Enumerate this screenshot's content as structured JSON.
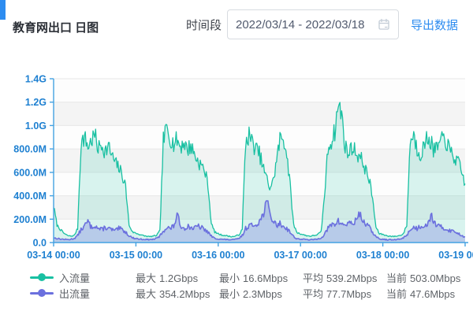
{
  "header": {
    "title": "教育网出口 日图",
    "time_label": "时间段",
    "date_range": "2022/03/14 - 2022/03/18",
    "export_label": "导出数据",
    "accent_color": "#2d8cf0"
  },
  "chart_data": {
    "type": "area",
    "title": "教育网出口 日图",
    "x_ticks": [
      "03-14 00:00",
      "03-15 00:00",
      "03-16 00:00",
      "03-17 00:00",
      "03-18 00:00",
      "03-19 00:00"
    ],
    "y_ticks": [
      "1.4G",
      "1.2G",
      "1.0G",
      "800.0M",
      "600.0M",
      "400.0M",
      "200.0M",
      "0.0"
    ],
    "ylim_mbps": [
      0,
      1400
    ],
    "unit": "Mbps",
    "grid_on": true,
    "legend_position": "bottom",
    "axis_color": "#44a2e2",
    "label_color": "#1e80d1",
    "grid_color": "#e7e7e7",
    "band_colors": [
      "#fdfdfd",
      "#f4f4f4"
    ],
    "noise": {
      "subdiv": 4,
      "min_amp": 4
    },
    "series": [
      {
        "id": "inbound",
        "name": "入流量",
        "color": "#19c0a2",
        "fill": "rgba(25,192,162,0.16)",
        "width": 1.3,
        "noise_seed": 7,
        "noise_frac": 0.09,
        "clamp_max": 1225,
        "hourly_mbps": [
          310,
          150,
          110,
          80,
          60,
          55,
          60,
          120,
          850,
          900,
          820,
          870,
          920,
          800,
          840,
          780,
          820,
          740,
          680,
          640,
          580,
          480,
          150,
          90,
          80,
          70,
          60,
          55,
          50,
          55,
          60,
          100,
          870,
          980,
          900,
          840,
          880,
          820,
          860,
          790,
          830,
          760,
          700,
          660,
          620,
          500,
          160,
          90,
          75,
          65,
          60,
          55,
          50,
          55,
          65,
          110,
          860,
          920,
          850,
          800,
          760,
          650,
          560,
          470,
          520,
          700,
          880,
          900,
          760,
          480,
          150,
          85,
          75,
          65,
          58,
          55,
          60,
          70,
          90,
          400,
          800,
          870,
          950,
          1180,
          1100,
          820,
          760,
          820,
          780,
          740,
          700,
          620,
          540,
          380,
          130,
          75,
          70,
          60,
          55,
          52,
          55,
          60,
          75,
          150,
          880,
          920,
          800,
          760,
          820,
          900,
          860,
          780,
          820,
          860,
          900,
          820,
          760,
          720,
          680,
          600,
          503
        ]
      },
      {
        "id": "outbound",
        "name": "出流量",
        "color": "#6b70de",
        "fill": "rgba(107,112,222,0.30)",
        "width": 1.6,
        "noise_seed": 13,
        "noise_frac": 0.17,
        "clamp_max": 356,
        "hourly_mbps": [
          40,
          35,
          30,
          28,
          25,
          28,
          35,
          60,
          110,
          140,
          180,
          130,
          150,
          120,
          110,
          130,
          120,
          110,
          100,
          120,
          110,
          90,
          60,
          40,
          35,
          30,
          28,
          26,
          25,
          28,
          35,
          55,
          100,
          130,
          120,
          140,
          230,
          150,
          120,
          140,
          130,
          120,
          140,
          130,
          110,
          90,
          55,
          35,
          32,
          28,
          26,
          25,
          24,
          27,
          35,
          60,
          120,
          150,
          140,
          160,
          180,
          230,
          354,
          260,
          180,
          150,
          160,
          140,
          120,
          90,
          50,
          32,
          30,
          27,
          25,
          24,
          26,
          30,
          40,
          70,
          120,
          150,
          160,
          180,
          160,
          150,
          170,
          160,
          180,
          250,
          200,
          160,
          130,
          90,
          50,
          30,
          28,
          25,
          24,
          23,
          25,
          30,
          40,
          65,
          110,
          130,
          120,
          140,
          150,
          160,
          230,
          180,
          140,
          130,
          120,
          110,
          100,
          90,
          80,
          60,
          48
        ]
      }
    ]
  },
  "legend": {
    "rows": [
      {
        "name": "入流量",
        "color": "#19c0a2",
        "stats": [
          {
            "label": "最大",
            "value": "1.2Gbps"
          },
          {
            "label": "最小",
            "value": "16.6Mbps"
          },
          {
            "label": "平均",
            "value": "539.2Mbps"
          },
          {
            "label": "当前",
            "value": "503.0Mbps"
          }
        ]
      },
      {
        "name": "出流量",
        "color": "#6b70de",
        "stats": [
          {
            "label": "最大",
            "value": "354.2Mbps"
          },
          {
            "label": "最小",
            "value": "2.3Mbps"
          },
          {
            "label": "平均",
            "value": "77.7Mbps"
          },
          {
            "label": "当前",
            "value": "47.6Mbps"
          }
        ]
      }
    ]
  },
  "icons": {
    "calendar": "calendar-icon"
  },
  "colors": {
    "accent": "#2d8cf0",
    "title_text": "#2b2f36",
    "legend_text": "#5f6368",
    "border": "#d7dbe0"
  }
}
